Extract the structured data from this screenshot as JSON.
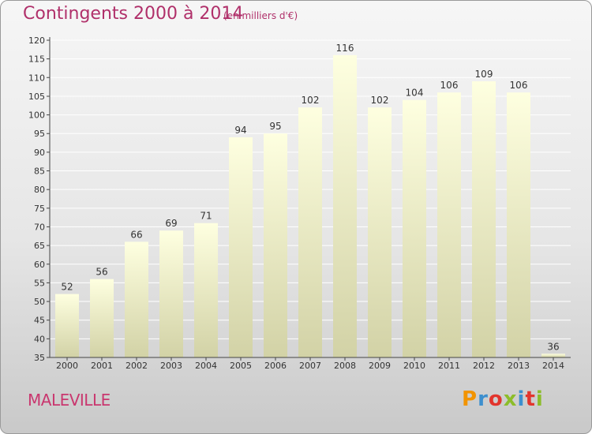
{
  "header": {
    "title": "Contingents 2000 à 2014",
    "subtitle": "(en milliers d'€)"
  },
  "footer": {
    "commune": "MALEVILLE",
    "logo": "Proxiti",
    "logo_colors": [
      "#f29400",
      "#3d8fce",
      "#e2352d",
      "#8cbd2a",
      "#3d8fce",
      "#e2352d",
      "#8cbd2a"
    ]
  },
  "colors": {
    "title": "#b0306a",
    "bar_top": "#feffe0",
    "bar_bottom": "#d2d2a6",
    "grid": "#ffffff",
    "axis": "#444444"
  },
  "chart_data": {
    "type": "bar",
    "title": "Contingents 2000 à 2014",
    "subtitle": "(en milliers d'€)",
    "categories": [
      "2000",
      "2001",
      "2002",
      "2003",
      "2004",
      "2005",
      "2006",
      "2007",
      "2008",
      "2009",
      "2010",
      "2011",
      "2012",
      "2013",
      "2014"
    ],
    "values": [
      52,
      56,
      66,
      69,
      71,
      94,
      95,
      102,
      116,
      102,
      104,
      106,
      109,
      106,
      36
    ],
    "ylim": [
      35,
      120
    ],
    "yticks": [
      35,
      40,
      45,
      50,
      55,
      60,
      65,
      70,
      75,
      80,
      85,
      90,
      95,
      100,
      105,
      110,
      115,
      120
    ],
    "grid": true,
    "data_labels": true
  }
}
